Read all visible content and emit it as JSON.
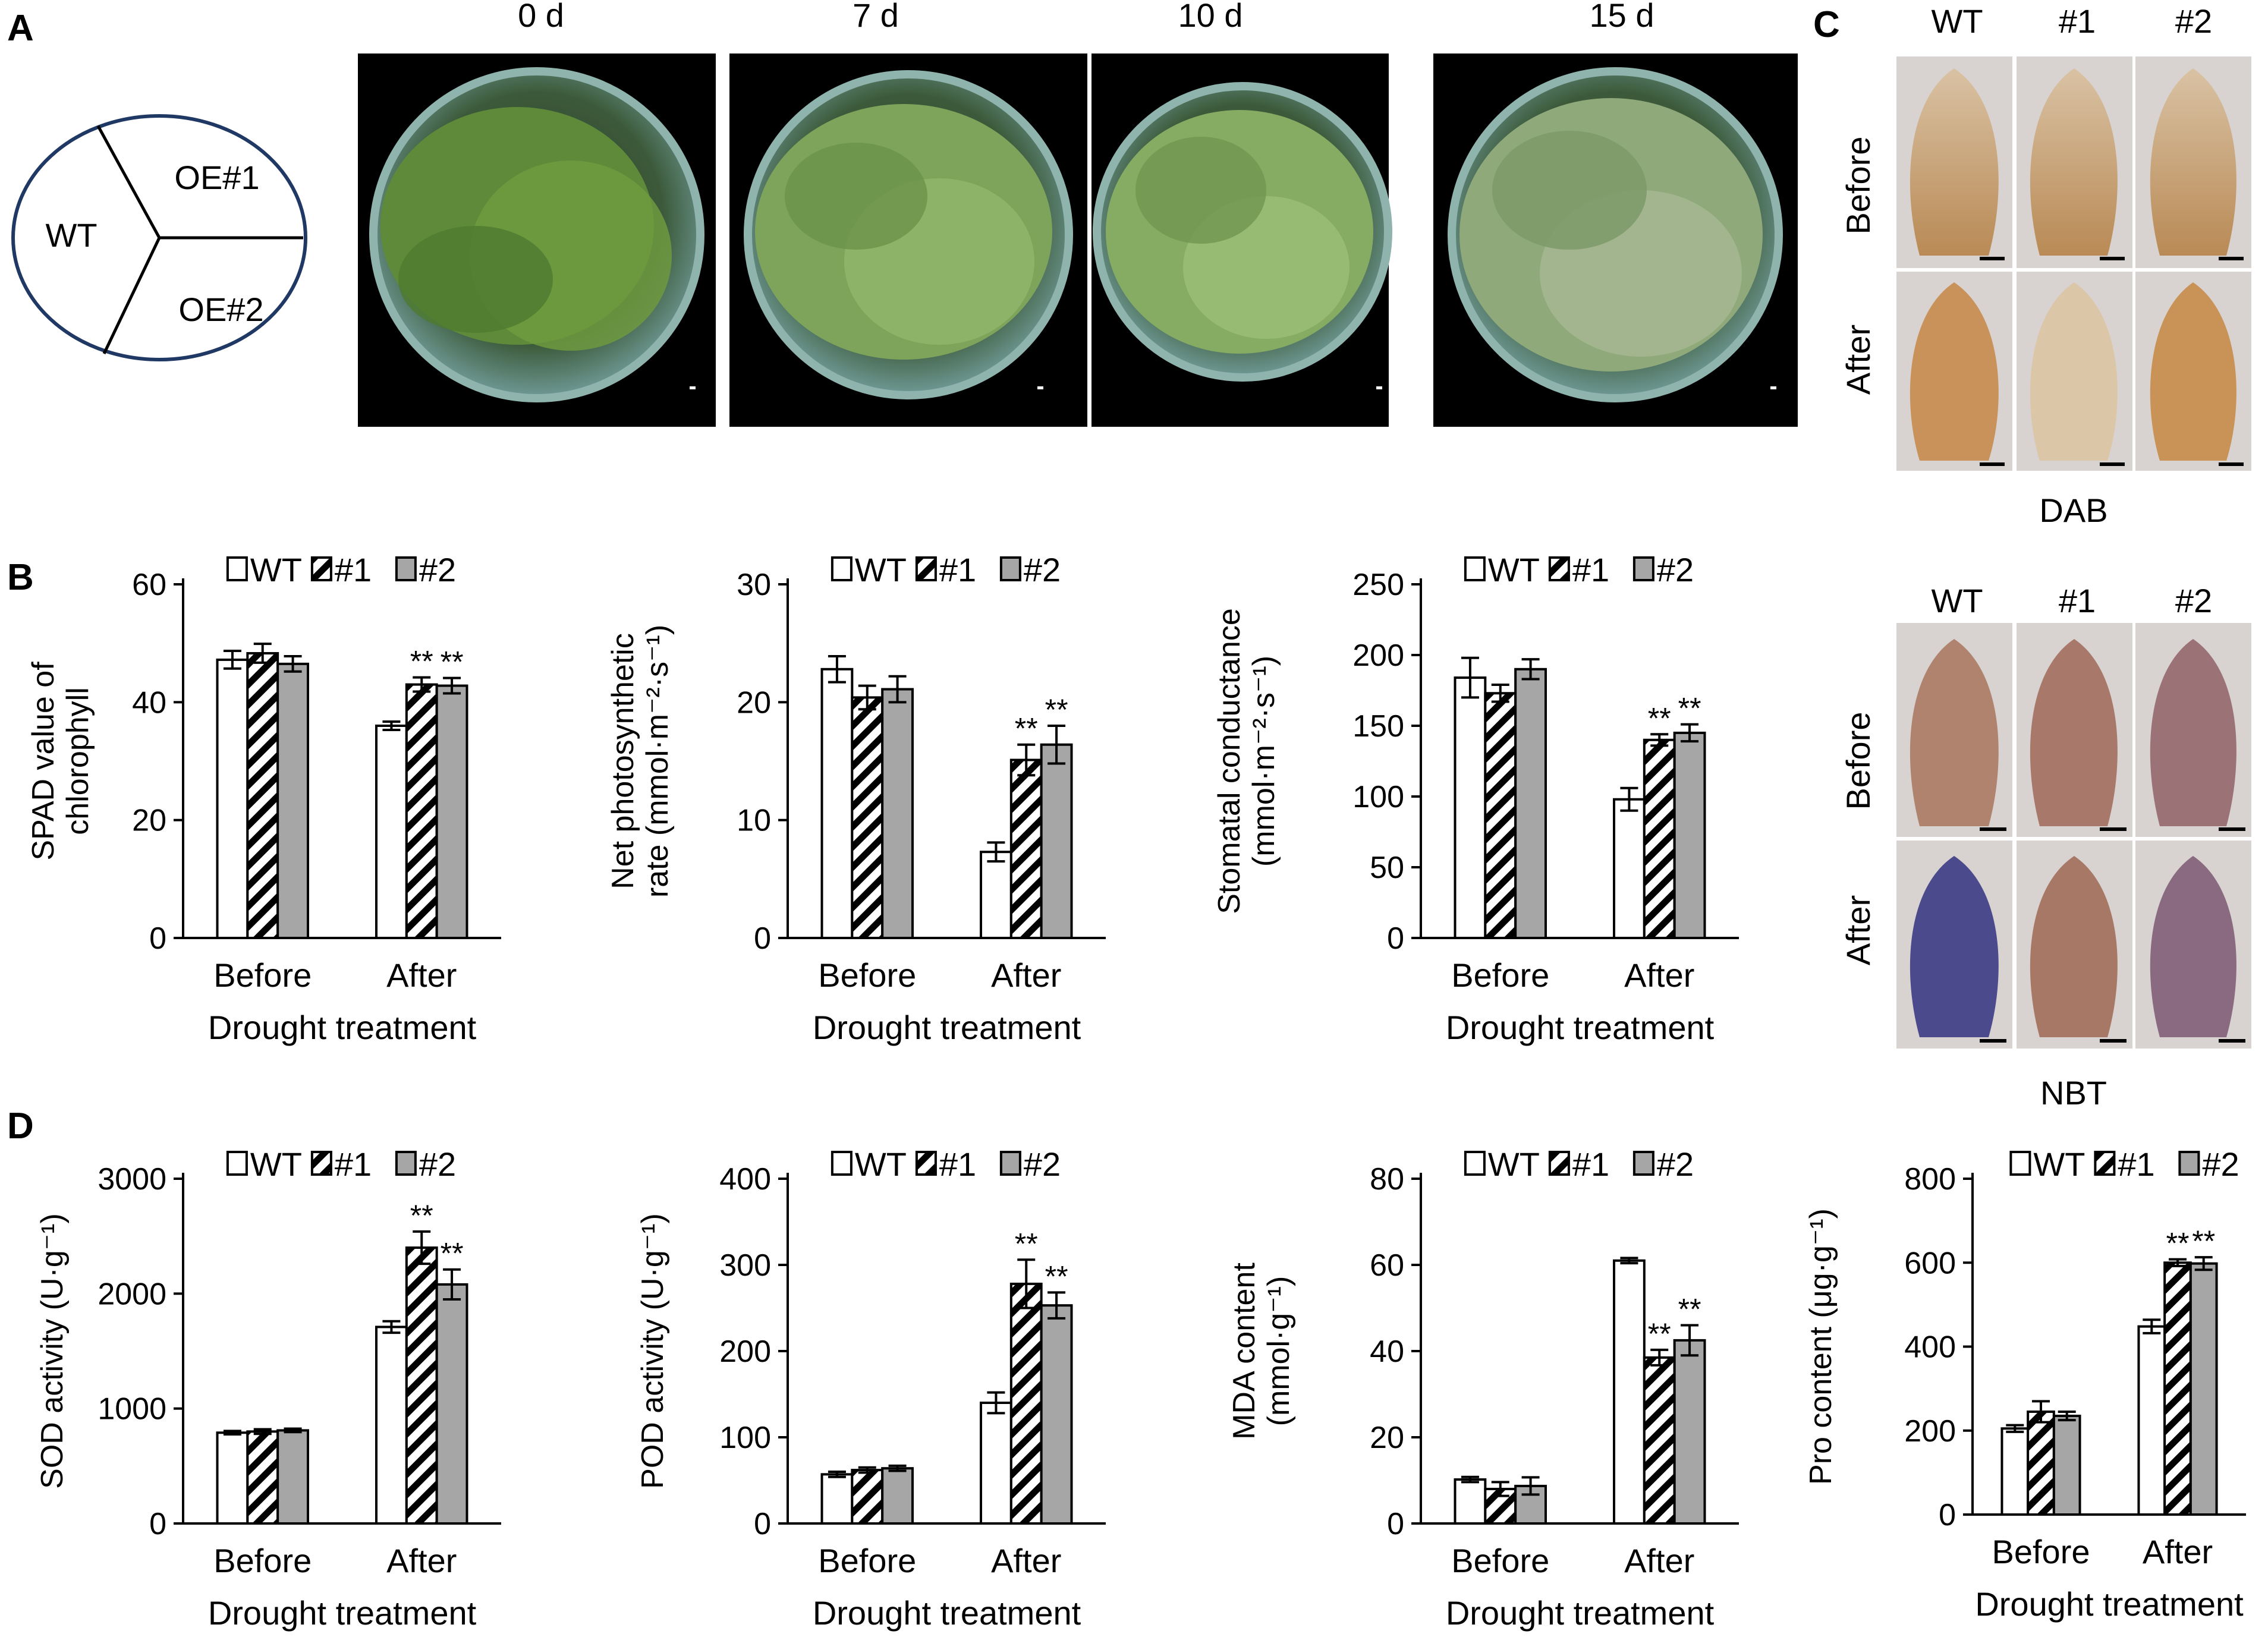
{
  "panels": {
    "A": {
      "label": "A",
      "pot_diagram": {
        "wt": "WT",
        "oe1": "OE#1",
        "oe2": "OE#2"
      },
      "photos": [
        {
          "label": "0 d"
        },
        {
          "label": "7 d"
        },
        {
          "label": "10 d"
        },
        {
          "label": "15 d"
        }
      ]
    },
    "B": {
      "label": "B"
    },
    "C": {
      "label": "C",
      "dab": {
        "stain": "DAB",
        "columns": [
          "WT",
          "#1",
          "#2"
        ],
        "rows": [
          "Before",
          "After"
        ]
      },
      "nbt": {
        "stain": "NBT",
        "columns": [
          "WT",
          "#1",
          "#2"
        ],
        "rows": [
          "Before",
          "After"
        ]
      }
    },
    "D": {
      "label": "D"
    }
  },
  "legend": [
    "WT",
    "#1",
    "#2"
  ],
  "significance_mark": "**",
  "colors": {
    "wt": "#ffffff",
    "oe1": "hatched",
    "oe2": "#a6a6a6",
    "axis": "#000000"
  },
  "chart_data": [
    {
      "type": "bar",
      "panel": "B",
      "categories": [
        "Before",
        "After"
      ],
      "xlabel": "Drought treatment",
      "ylabel_lines": [
        "SPAD value of",
        "chlorophyll"
      ],
      "ylim": [
        0,
        60
      ],
      "yticks": [
        0,
        20,
        40,
        60
      ],
      "series": [
        {
          "name": "WT",
          "values": [
            47.2,
            36
          ],
          "errors": [
            1.5,
            0.7
          ],
          "sig": [
            "",
            ""
          ]
        },
        {
          "name": "#1",
          "values": [
            48.3,
            43
          ],
          "errors": [
            1.6,
            1.2
          ],
          "sig": [
            "",
            "**"
          ]
        },
        {
          "name": "#2",
          "values": [
            46.5,
            42.8
          ],
          "errors": [
            1.3,
            1.3
          ],
          "sig": [
            "",
            "**"
          ]
        }
      ]
    },
    {
      "type": "bar",
      "panel": "B",
      "categories": [
        "Before",
        "After"
      ],
      "xlabel": "Drought treatment",
      "ylabel_lines": [
        "Net photosynthetic",
        "rate (mmol·m⁻²·s⁻¹)"
      ],
      "ylim": [
        0,
        30
      ],
      "yticks": [
        0,
        10,
        20,
        30
      ],
      "series": [
        {
          "name": "WT",
          "values": [
            22.8,
            7.3
          ],
          "errors": [
            1.1,
            0.8
          ],
          "sig": [
            "",
            ""
          ]
        },
        {
          "name": "#1",
          "values": [
            20.4,
            15.1
          ],
          "errors": [
            1.0,
            1.3
          ],
          "sig": [
            "",
            "**"
          ]
        },
        {
          "name": "#2",
          "values": [
            21.1,
            16.4
          ],
          "errors": [
            1.1,
            1.6
          ],
          "sig": [
            "",
            "**"
          ]
        }
      ]
    },
    {
      "type": "bar",
      "panel": "B",
      "categories": [
        "Before",
        "After"
      ],
      "xlabel": "Drought treatment",
      "ylabel_lines": [
        "Stomatal conductance",
        "(mmol·m⁻²·s⁻¹)"
      ],
      "ylim": [
        0,
        250
      ],
      "yticks": [
        0,
        50,
        100,
        150,
        200,
        250
      ],
      "series": [
        {
          "name": "WT",
          "values": [
            184,
            98
          ],
          "errors": [
            14,
            8
          ],
          "sig": [
            "",
            ""
          ]
        },
        {
          "name": "#1",
          "values": [
            173,
            140
          ],
          "errors": [
            6,
            4
          ],
          "sig": [
            "",
            "**"
          ]
        },
        {
          "name": "#2",
          "values": [
            190,
            145
          ],
          "errors": [
            7,
            6
          ],
          "sig": [
            "",
            "**"
          ]
        }
      ]
    },
    {
      "type": "bar",
      "panel": "D",
      "categories": [
        "Before",
        "After"
      ],
      "xlabel": "Drought treatment",
      "ylabel_lines": [
        "SOD activity (U·g⁻¹)"
      ],
      "ylim": [
        0,
        3000
      ],
      "yticks": [
        0,
        1000,
        2000,
        3000
      ],
      "series": [
        {
          "name": "WT",
          "values": [
            790,
            1710
          ],
          "errors": [
            15,
            50
          ],
          "sig": [
            "",
            ""
          ]
        },
        {
          "name": "#1",
          "values": [
            800,
            2400
          ],
          "errors": [
            20,
            140
          ],
          "sig": [
            "",
            "**"
          ]
        },
        {
          "name": "#2",
          "values": [
            810,
            2080
          ],
          "errors": [
            15,
            130
          ],
          "sig": [
            "",
            "**"
          ]
        }
      ]
    },
    {
      "type": "bar",
      "panel": "D",
      "categories": [
        "Before",
        "After"
      ],
      "xlabel": "Drought treatment",
      "ylabel_lines": [
        "POD activity (U·g⁻¹)"
      ],
      "ylim": [
        0,
        400
      ],
      "yticks": [
        0,
        100,
        200,
        300,
        400
      ],
      "series": [
        {
          "name": "WT",
          "values": [
            57,
            140
          ],
          "errors": [
            3,
            12
          ],
          "sig": [
            "",
            ""
          ]
        },
        {
          "name": "#1",
          "values": [
            62,
            278
          ],
          "errors": [
            3,
            28
          ],
          "sig": [
            "",
            "**"
          ]
        },
        {
          "name": "#2",
          "values": [
            64,
            253
          ],
          "errors": [
            3,
            15
          ],
          "sig": [
            "",
            "**"
          ]
        }
      ]
    },
    {
      "type": "bar",
      "panel": "D",
      "categories": [
        "Before",
        "After"
      ],
      "xlabel": "Drought treatment",
      "ylabel_lines": [
        "MDA content",
        "(mmol·g⁻¹)"
      ],
      "ylim": [
        0,
        80
      ],
      "yticks": [
        0,
        20,
        40,
        60,
        80
      ],
      "series": [
        {
          "name": "WT",
          "values": [
            10.2,
            61
          ],
          "errors": [
            0.6,
            0.6
          ],
          "sig": [
            "",
            ""
          ]
        },
        {
          "name": "#1",
          "values": [
            8,
            38.5
          ],
          "errors": [
            1.6,
            1.8
          ],
          "sig": [
            "",
            "**"
          ]
        },
        {
          "name": "#2",
          "values": [
            8.7,
            42.5
          ],
          "errors": [
            2.0,
            3.5
          ],
          "sig": [
            "",
            "**"
          ]
        }
      ]
    },
    {
      "type": "bar",
      "panel": "D",
      "categories": [
        "Before",
        "After"
      ],
      "xlabel": "Drought treatment",
      "ylabel_lines": [
        "Pro content (μg·g⁻¹)"
      ],
      "ylim": [
        0,
        800
      ],
      "yticks": [
        0,
        200,
        400,
        600,
        800
      ],
      "series": [
        {
          "name": "WT",
          "values": [
            205,
            448
          ],
          "errors": [
            8,
            16
          ],
          "sig": [
            "",
            ""
          ]
        },
        {
          "name": "#1",
          "values": [
            245,
            600
          ],
          "errors": [
            25,
            8
          ],
          "sig": [
            "",
            "**"
          ]
        },
        {
          "name": "#2",
          "values": [
            235,
            598
          ],
          "errors": [
            10,
            15
          ],
          "sig": [
            "",
            "**"
          ]
        }
      ]
    }
  ]
}
